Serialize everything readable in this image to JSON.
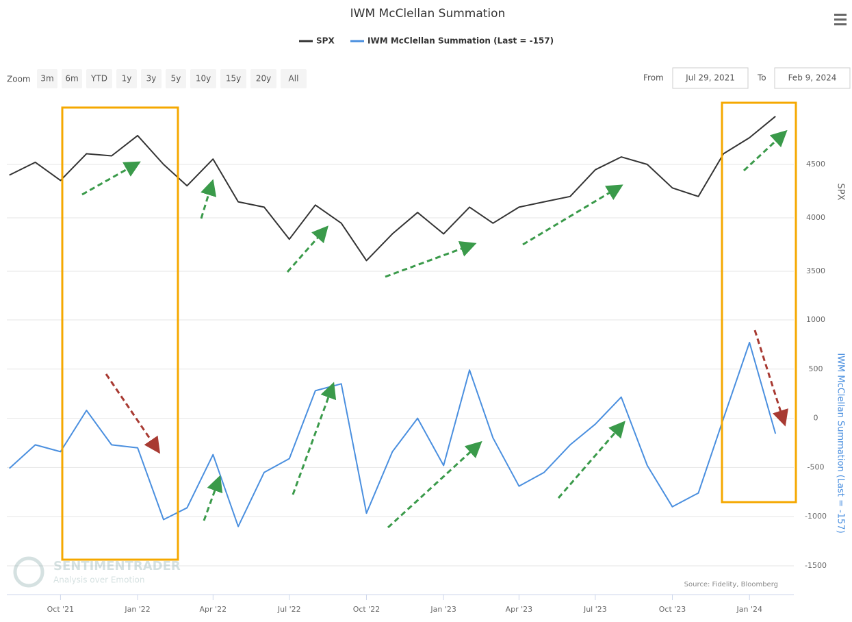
{
  "title": "IWM McClellan Summation",
  "zoom": {
    "label": "Zoom",
    "buttons": [
      "3m",
      "6m",
      "YTD",
      "1y",
      "3y",
      "5y",
      "10y",
      "15y",
      "20y",
      "All"
    ]
  },
  "range": {
    "from_label": "From",
    "from": "Jul 29, 2021",
    "to_label": "To",
    "to": "Feb 9, 2024"
  },
  "source": "Source: Fidelity, Bloomberg",
  "watermark": {
    "name": "SENTIMENTRADER",
    "tagline": "Analysis over Emotion"
  },
  "chart_data": [
    {
      "type": "line",
      "ylabel": "SPX",
      "xlim": [
        "2021-07-29",
        "2024-02-09"
      ],
      "x": [
        "2021-08",
        "2021-09",
        "2021-10",
        "2021-11",
        "2021-12",
        "2022-01",
        "2022-02",
        "2022-03",
        "2022-04",
        "2022-05",
        "2022-06",
        "2022-07",
        "2022-08",
        "2022-09",
        "2022-10",
        "2022-11",
        "2022-12",
        "2023-01",
        "2023-02",
        "2023-03",
        "2023-04",
        "2023-05",
        "2023-06",
        "2023-07",
        "2023-08",
        "2023-09",
        "2023-10",
        "2023-11",
        "2023-12",
        "2024-01",
        "2024-02"
      ],
      "series": [
        {
          "name": "SPX",
          "color": "#333333",
          "values": [
            4400,
            4520,
            4350,
            4600,
            4580,
            4770,
            4500,
            4300,
            4550,
            4150,
            4100,
            3800,
            4120,
            3950,
            3600,
            3850,
            4050,
            3850,
            4100,
            3950,
            4100,
            4150,
            4200,
            4450,
            4570,
            4500,
            4280,
            4200,
            4600,
            4750,
            4950
          ]
        }
      ],
      "ylim": [
        3500,
        5000
      ],
      "yticks": [
        3500,
        4000,
        4500
      ],
      "grid": true
    },
    {
      "type": "line",
      "ylabel": "IWM McClellan Summation (Last = -157)",
      "xlim": [
        "2021-07-29",
        "2024-02-09"
      ],
      "x": [
        "2021-08",
        "2021-09",
        "2021-10",
        "2021-11",
        "2021-12",
        "2022-01",
        "2022-02",
        "2022-03",
        "2022-04",
        "2022-05",
        "2022-06",
        "2022-07",
        "2022-08",
        "2022-09",
        "2022-10",
        "2022-11",
        "2022-12",
        "2023-01",
        "2023-02",
        "2023-03",
        "2023-04",
        "2023-05",
        "2023-06",
        "2023-07",
        "2023-08",
        "2023-09",
        "2023-10",
        "2023-11",
        "2023-12",
        "2024-01",
        "2024-02"
      ],
      "series": [
        {
          "name": "IWM McClellan Summation (Last = -157)",
          "color": "#4a8fdf",
          "values": [
            -510,
            -270,
            -340,
            80,
            -270,
            -300,
            -1030,
            -910,
            -370,
            -1100,
            -550,
            -410,
            280,
            350,
            -965,
            -340,
            0,
            -480,
            490,
            -200,
            -690,
            -550,
            -270,
            -60,
            215,
            -480,
            -900,
            -760,
            0,
            770,
            -157
          ]
        }
      ],
      "ylim": [
        -1500,
        1000
      ],
      "yticks": [
        -1500,
        -1000,
        -500,
        0,
        500,
        1000
      ],
      "xticks": [
        {
          "value": "2021-10",
          "label": "Oct '21"
        },
        {
          "value": "2022-01",
          "label": "Jan '22"
        },
        {
          "value": "2022-04",
          "label": "Apr '22"
        },
        {
          "value": "2022-07",
          "label": "Jul '22"
        },
        {
          "value": "2022-10",
          "label": "Oct '22"
        },
        {
          "value": "2023-01",
          "label": "Jan '23"
        },
        {
          "value": "2023-04",
          "label": "Apr '23"
        },
        {
          "value": "2023-07",
          "label": "Jul '23"
        },
        {
          "value": "2023-10",
          "label": "Oct '23"
        },
        {
          "value": "2024-01",
          "label": "Jan '24"
        }
      ],
      "grid": true
    }
  ]
}
